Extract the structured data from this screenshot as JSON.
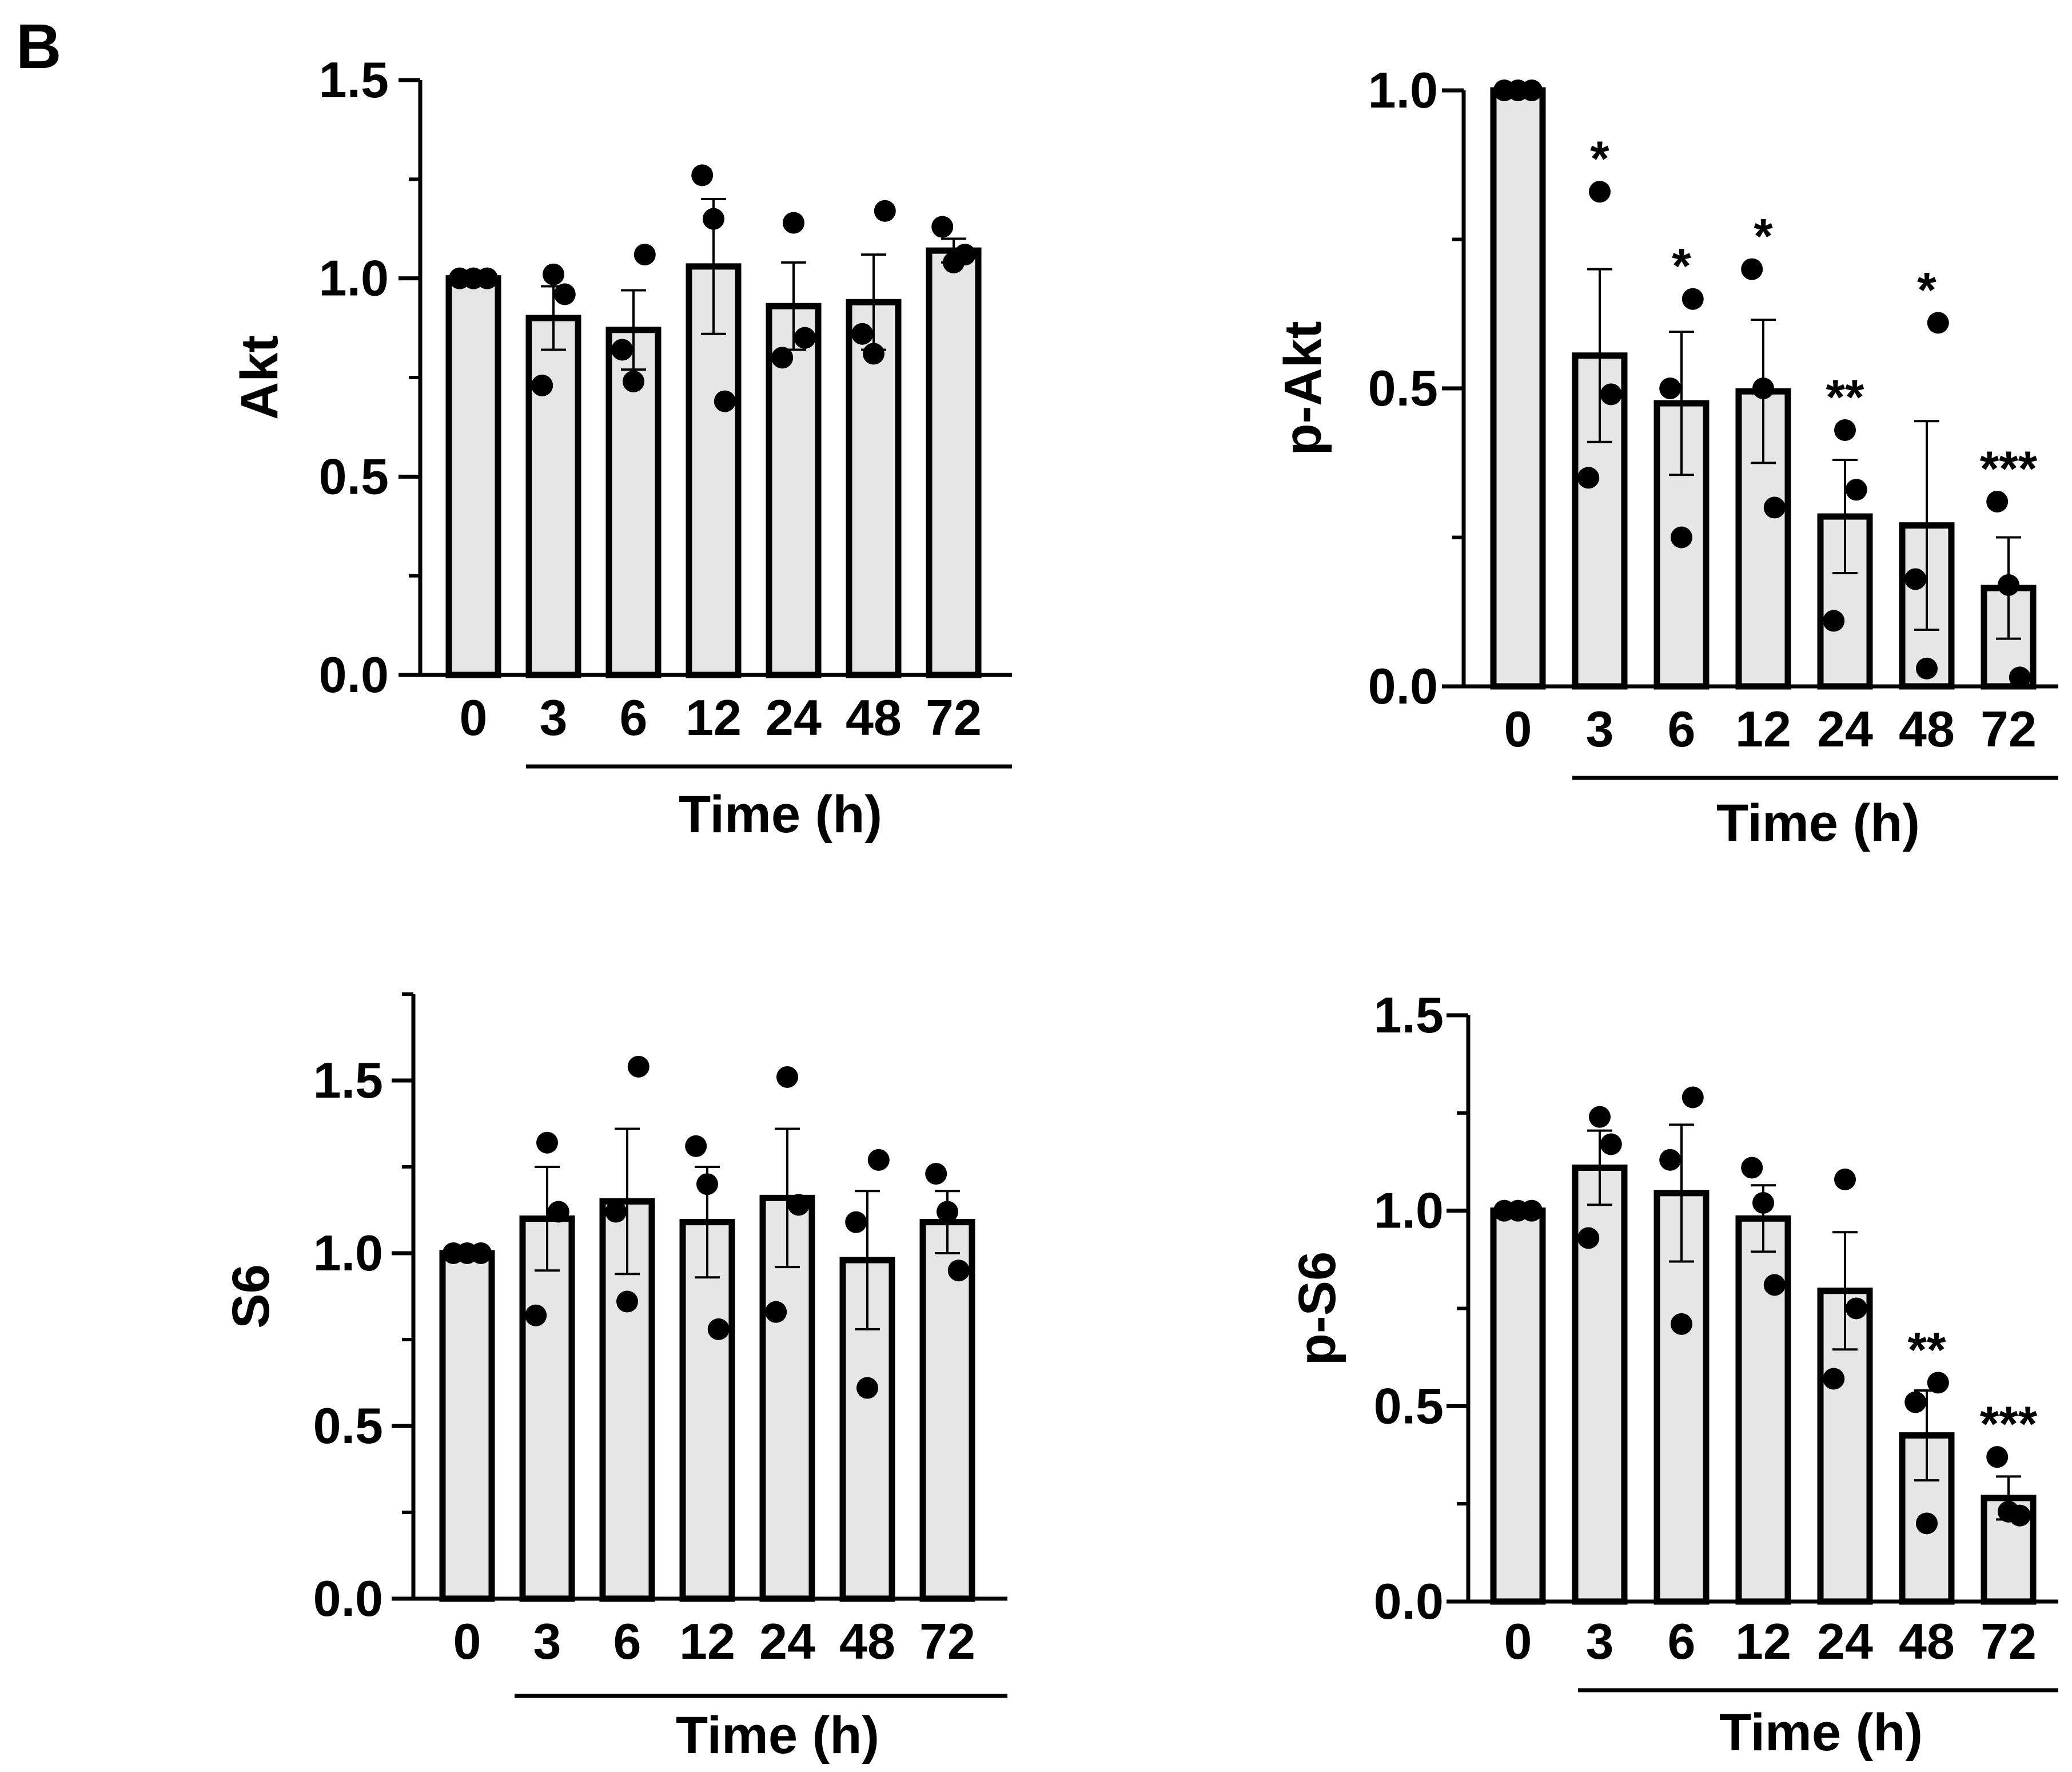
{
  "panel_label": "B",
  "chart_data": [
    {
      "id": "akt",
      "type": "bar",
      "ylabel": "Akt",
      "xlabel": "Time (h)",
      "categories": [
        "0",
        "3",
        "6",
        "12",
        "24",
        "48",
        "72"
      ],
      "values": [
        1.0,
        0.9,
        0.87,
        1.03,
        0.93,
        0.94,
        1.07
      ],
      "sem": [
        0.0,
        0.08,
        0.1,
        0.17,
        0.11,
        0.12,
        0.03
      ],
      "points": [
        [
          1.0,
          1.0,
          1.0
        ],
        [
          1.01,
          0.96,
          0.73
        ],
        [
          1.06,
          0.82,
          0.74
        ],
        [
          1.26,
          1.15,
          0.69
        ],
        [
          1.14,
          0.85,
          0.8
        ],
        [
          1.17,
          0.86,
          0.81
        ],
        [
          1.13,
          1.04,
          1.06
        ]
      ],
      "significance": [
        "",
        "",
        "",
        "",
        "",
        "",
        ""
      ],
      "ylim": [
        0,
        1.5
      ],
      "ymax_axis": 1.5,
      "yticks": [
        0.0,
        0.5,
        1.0,
        1.5
      ],
      "ytick_labels": [
        "0.0",
        "0.5",
        "1.0",
        "1.5"
      ],
      "yminor": [
        0.25,
        0.75,
        1.25
      ]
    },
    {
      "id": "p-akt",
      "type": "bar",
      "ylabel": "p-Akt",
      "xlabel": "Time (h)",
      "categories": [
        "0",
        "3",
        "6",
        "12",
        "24",
        "48",
        "72"
      ],
      "values": [
        1.0,
        0.555,
        0.475,
        0.495,
        0.285,
        0.27,
        0.165
      ],
      "sem": [
        0.0,
        0.145,
        0.12,
        0.12,
        0.095,
        0.175,
        0.085
      ],
      "points": [
        [
          1.0,
          1.0,
          1.0
        ],
        [
          0.83,
          0.49,
          0.35
        ],
        [
          0.65,
          0.5,
          0.25
        ],
        [
          0.7,
          0.5,
          0.3
        ],
        [
          0.43,
          0.33,
          0.11
        ],
        [
          0.61,
          0.18,
          0.03
        ],
        [
          0.31,
          0.17,
          0.015
        ]
      ],
      "significance": [
        "",
        "*",
        "*",
        "*",
        "**",
        "*",
        "***"
      ],
      "ylim": [
        0,
        1.0
      ],
      "ymax_axis": 1.0,
      "yticks": [
        0.0,
        0.5,
        1.0
      ],
      "ytick_labels": [
        "0.0",
        "0.5",
        "1.0"
      ],
      "yminor": [
        0.25,
        0.75
      ]
    },
    {
      "id": "s6",
      "type": "bar",
      "ylabel": "S6",
      "xlabel": "Time (h)",
      "categories": [
        "0",
        "3",
        "6",
        "12",
        "24",
        "48",
        "72"
      ],
      "values": [
        1.0,
        1.1,
        1.15,
        1.09,
        1.16,
        0.98,
        1.09
      ],
      "sem": [
        0.0,
        0.15,
        0.21,
        0.16,
        0.2,
        0.2,
        0.09
      ],
      "points": [
        [
          1.0,
          1.0,
          1.0
        ],
        [
          1.32,
          1.12,
          0.82
        ],
        [
          1.54,
          1.12,
          0.86
        ],
        [
          1.31,
          1.2,
          0.78
        ],
        [
          1.51,
          1.14,
          0.83
        ],
        [
          1.27,
          1.09,
          0.61
        ],
        [
          1.23,
          1.12,
          0.95
        ]
      ],
      "significance": [
        "",
        "",
        "",
        "",
        "",
        "",
        ""
      ],
      "ylim": [
        0,
        1.75
      ],
      "ymax_axis": 1.75,
      "yticks": [
        0.0,
        0.5,
        1.0,
        1.5
      ],
      "ytick_labels": [
        "0.0",
        "0.5",
        "1.0",
        "1.5"
      ],
      "yminor": [
        0.25,
        0.75,
        1.25,
        1.75
      ]
    },
    {
      "id": "p-s6",
      "type": "bar",
      "ylabel": "p-S6",
      "xlabel": "Time (h)",
      "categories": [
        "0",
        "3",
        "6",
        "12",
        "24",
        "48",
        "72"
      ],
      "values": [
        1.0,
        1.11,
        1.045,
        0.98,
        0.795,
        0.425,
        0.265
      ],
      "sem": [
        0.0,
        0.095,
        0.175,
        0.085,
        0.15,
        0.115,
        0.055
      ],
      "points": [
        [
          1.0,
          1.0,
          1.0
        ],
        [
          1.24,
          1.17,
          0.93
        ],
        [
          1.29,
          1.13,
          0.71
        ],
        [
          1.11,
          1.02,
          0.81
        ],
        [
          1.08,
          0.75,
          0.57
        ],
        [
          0.56,
          0.51,
          0.2
        ],
        [
          0.37,
          0.23,
          0.22
        ]
      ],
      "significance": [
        "",
        "",
        "",
        "",
        "",
        "**",
        "***"
      ],
      "ylim": [
        0,
        1.5
      ],
      "ymax_axis": 1.5,
      "yticks": [
        0.0,
        0.5,
        1.0,
        1.5
      ],
      "ytick_labels": [
        "0.0",
        "0.5",
        "1.0",
        "1.5"
      ],
      "yminor": [
        0.25,
        0.75,
        1.25
      ]
    }
  ]
}
